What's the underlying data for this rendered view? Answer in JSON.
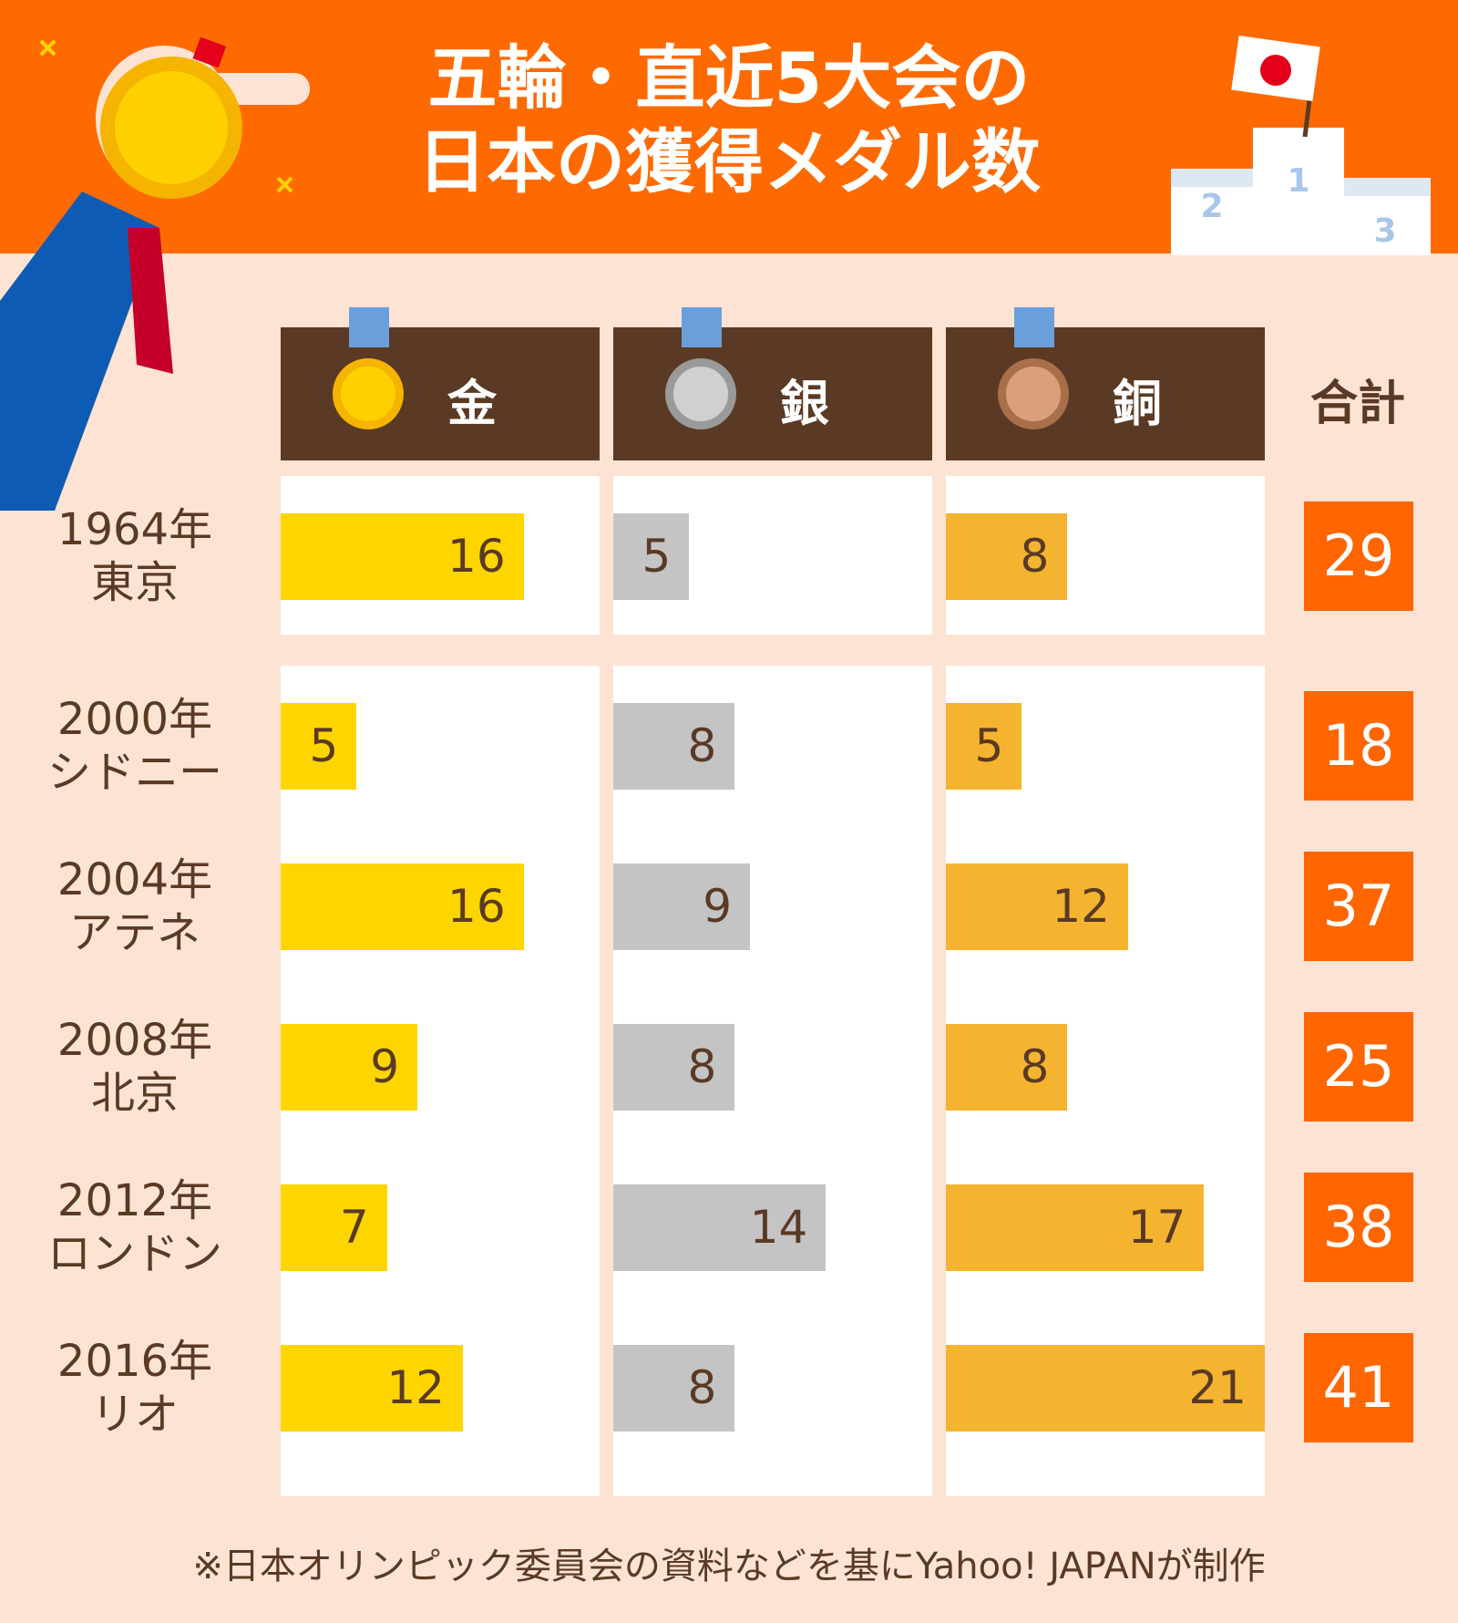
{
  "chart_data": {
    "type": "bar",
    "title": "五輪・直近5大会の\n日本の獲得メダル数",
    "categories": [
      "1964年\n東京",
      "2000年\nシドニー",
      "2004年\nアテネ",
      "2008年\n北京",
      "2012年\nロンドン",
      "2016年\nリオ"
    ],
    "series": [
      {
        "name": "金",
        "color": "#ffd500",
        "values": [
          16,
          5,
          16,
          9,
          7,
          12
        ]
      },
      {
        "name": "銀",
        "color": "#c4c4c4",
        "values": [
          5,
          8,
          9,
          8,
          14,
          8
        ]
      },
      {
        "name": "銅",
        "color": "#f5b430",
        "values": [
          8,
          5,
          12,
          8,
          17,
          21
        ]
      }
    ],
    "totals": {
      "name": "合計",
      "color": "#ff6600",
      "values": [
        29,
        18,
        37,
        25,
        38,
        41
      ]
    },
    "xlim": [
      0,
      21
    ],
    "note": "※日本オリンピック委員会の資料などを基にYahoo! JAPANが制作"
  }
}
